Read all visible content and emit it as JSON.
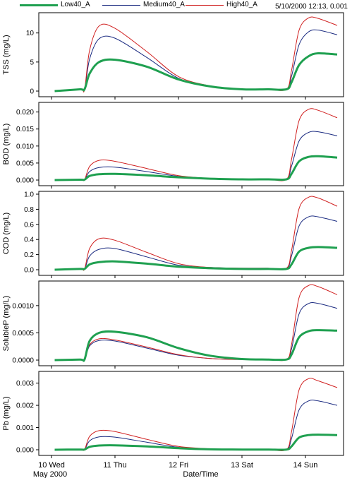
{
  "legend": {
    "items": [
      {
        "label": "Low40_A",
        "color": "#1fa050",
        "width": 3
      },
      {
        "label": "Medium40_A",
        "color": "#1a2a80",
        "width": 1
      },
      {
        "label": "High40_A",
        "color": "#d02020",
        "width": 1
      }
    ]
  },
  "cursor_readout": "5/10/2000 12:13, 0.001",
  "chart_data": {
    "type": "line",
    "x_axis": {
      "label": "Date/Time",
      "range_days": [
        9.8,
        14.6
      ],
      "ticks": [
        {
          "day": 10,
          "label": "10 Wed",
          "sublabel": "May 2000"
        },
        {
          "day": 11,
          "label": "11 Thu"
        },
        {
          "day": 12,
          "label": "12 Fri"
        },
        {
          "day": 13,
          "label": "13 Sat"
        },
        {
          "day": 14,
          "label": "14 Sun"
        }
      ]
    },
    "panels": [
      {
        "name": "tss",
        "ylabel": "TSS (mg/L)",
        "ylim": [
          0,
          13
        ],
        "yticks": [
          {
            "v": 0,
            "t": "0"
          },
          {
            "v": 5,
            "t": "5"
          },
          {
            "v": 10,
            "t": "10"
          }
        ],
        "series": [
          {
            "name": "Low40_A",
            "x": [
              10.05,
              10.45,
              10.52,
              10.6,
              10.75,
              11.0,
              11.5,
              12.0,
              12.5,
              13.0,
              13.4,
              13.7,
              13.78,
              13.9,
              14.05,
              14.2,
              14.5
            ],
            "y": [
              0,
              0.3,
              0.3,
              3.0,
              5.0,
              5.4,
              4.2,
              2.0,
              0.8,
              0.3,
              0.3,
              0.3,
              1.5,
              4.5,
              6.0,
              6.5,
              6.3
            ]
          },
          {
            "name": "Medium40_A",
            "x": [
              10.05,
              10.45,
              10.52,
              10.6,
              10.75,
              11.0,
              11.5,
              12.0,
              12.5,
              13.0,
              13.4,
              13.7,
              13.78,
              13.9,
              14.05,
              14.2,
              14.5
            ],
            "y": [
              0,
              0.3,
              0.3,
              5.5,
              9.0,
              9.1,
              5.8,
              2.2,
              0.8,
              0.3,
              0.3,
              0.3,
              2.5,
              8.0,
              10.2,
              10.5,
              9.7
            ]
          },
          {
            "name": "High40_A",
            "x": [
              10.05,
              10.45,
              10.52,
              10.6,
              10.75,
              11.0,
              11.5,
              12.0,
              12.5,
              13.0,
              13.4,
              13.7,
              13.78,
              13.9,
              14.05,
              14.2,
              14.5
            ],
            "y": [
              0,
              0.3,
              0.3,
              7.0,
              11.2,
              10.8,
              6.8,
              2.5,
              0.9,
              0.3,
              0.3,
              0.3,
              3.5,
              10.5,
              12.6,
              12.5,
              11.3
            ]
          }
        ]
      },
      {
        "name": "bod",
        "ylabel": "BOD (mg/L)",
        "ylim": [
          0,
          0.022
        ],
        "yticks": [
          {
            "v": 0,
            "t": "0.000"
          },
          {
            "v": 0.005,
            "t": "0.005"
          },
          {
            "v": 0.01,
            "t": "0.010"
          },
          {
            "v": 0.015,
            "t": "0.015"
          },
          {
            "v": 0.02,
            "t": "0.020"
          }
        ],
        "series": [
          {
            "name": "Low40_A",
            "x": [
              10.05,
              10.45,
              10.52,
              10.6,
              10.75,
              11.0,
              11.5,
              12.0,
              12.5,
              13.0,
              13.4,
              13.7,
              13.78,
              13.9,
              14.05,
              14.2,
              14.5
            ],
            "y": [
              0,
              0.0001,
              0.0001,
              0.0012,
              0.0017,
              0.0018,
              0.0014,
              0.0008,
              0.0004,
              0.0002,
              0.0002,
              0.0002,
              0.0018,
              0.0055,
              0.0068,
              0.007,
              0.0066
            ]
          },
          {
            "name": "Medium40_A",
            "x": [
              10.05,
              10.45,
              10.52,
              10.6,
              10.75,
              11.0,
              11.5,
              12.0,
              12.5,
              13.0,
              13.4,
              13.7,
              13.78,
              13.9,
              14.05,
              14.2,
              14.5
            ],
            "y": [
              0,
              0.0001,
              0.0001,
              0.0025,
              0.0037,
              0.0038,
              0.0025,
              0.0011,
              0.0005,
              0.0002,
              0.0002,
              0.0002,
              0.004,
              0.0115,
              0.014,
              0.0142,
              0.013
            ]
          },
          {
            "name": "High40_A",
            "x": [
              10.05,
              10.45,
              10.52,
              10.6,
              10.75,
              11.0,
              11.5,
              12.0,
              12.5,
              13.0,
              13.4,
              13.7,
              13.78,
              13.9,
              14.05,
              14.2,
              14.5
            ],
            "y": [
              0,
              0.0001,
              0.0001,
              0.004,
              0.0058,
              0.0055,
              0.0034,
              0.0013,
              0.0005,
              0.0002,
              0.0002,
              0.0002,
              0.006,
              0.0175,
              0.0208,
              0.0205,
              0.0183
            ]
          }
        ]
      },
      {
        "name": "cod",
        "ylabel": "COD (mg/L)",
        "ylim": [
          0,
          1.0
        ],
        "yticks": [
          {
            "v": 0,
            "t": "0.0"
          },
          {
            "v": 0.2,
            "t": "0.2"
          },
          {
            "v": 0.4,
            "t": "0.4"
          },
          {
            "v": 0.6,
            "t": "0.6"
          },
          {
            "v": 0.8,
            "t": "0.8"
          },
          {
            "v": 1.0,
            "t": "1.0"
          }
        ],
        "series": [
          {
            "name": "Low40_A",
            "x": [
              10.05,
              10.45,
              10.52,
              10.6,
              10.75,
              11.0,
              11.5,
              12.0,
              12.5,
              13.0,
              13.4,
              13.7,
              13.78,
              13.9,
              14.05,
              14.2,
              14.5
            ],
            "y": [
              0,
              0.01,
              0.01,
              0.07,
              0.1,
              0.11,
              0.08,
              0.04,
              0.02,
              0.01,
              0.01,
              0.01,
              0.07,
              0.24,
              0.29,
              0.3,
              0.29
            ]
          },
          {
            "name": "Medium40_A",
            "x": [
              10.05,
              10.45,
              10.52,
              10.6,
              10.75,
              11.0,
              11.5,
              12.0,
              12.5,
              13.0,
              13.4,
              13.7,
              13.78,
              13.9,
              14.05,
              14.2,
              14.5
            ],
            "y": [
              0,
              0.01,
              0.01,
              0.18,
              0.27,
              0.28,
              0.17,
              0.06,
              0.03,
              0.02,
              0.02,
              0.02,
              0.18,
              0.58,
              0.7,
              0.7,
              0.64
            ]
          },
          {
            "name": "High40_A",
            "x": [
              10.05,
              10.45,
              10.52,
              10.6,
              10.75,
              11.0,
              11.5,
              12.0,
              12.5,
              13.0,
              13.4,
              13.7,
              13.78,
              13.9,
              14.05,
              14.2,
              14.5
            ],
            "y": [
              0,
              0.01,
              0.01,
              0.28,
              0.41,
              0.39,
              0.23,
              0.08,
              0.03,
              0.02,
              0.02,
              0.02,
              0.25,
              0.81,
              0.96,
              0.95,
              0.84
            ]
          }
        ]
      },
      {
        "name": "solublep",
        "ylabel": "SolubleP (mg/L)",
        "ylim": [
          0,
          0.0014
        ],
        "yticks": [
          {
            "v": 0,
            "t": "0.0000"
          },
          {
            "v": 0.0005,
            "t": "0.0005"
          },
          {
            "v": 0.001,
            "t": "0.0010"
          }
        ],
        "series": [
          {
            "name": "Low40_A",
            "x": [
              10.05,
              10.45,
              10.52,
              10.6,
              10.75,
              11.0,
              11.5,
              12.0,
              12.5,
              13.0,
              13.4,
              13.7,
              13.78,
              13.9,
              14.05,
              14.2,
              14.5
            ],
            "y": [
              0,
              1e-05,
              1e-05,
              0.00035,
              0.0005,
              0.00052,
              0.00042,
              0.00022,
              8e-05,
              2e-05,
              1e-05,
              1e-05,
              0.0001,
              0.00042,
              0.00053,
              0.00055,
              0.00054
            ]
          },
          {
            "name": "Medium40_A",
            "x": [
              10.05,
              10.45,
              10.52,
              10.6,
              10.75,
              11.0,
              11.5,
              12.0,
              12.5,
              13.0,
              13.4,
              13.7,
              13.78,
              13.9,
              14.05,
              14.2,
              14.5
            ],
            "y": [
              0,
              1e-05,
              1e-05,
              0.00026,
              0.00036,
              0.00035,
              0.00022,
              9e-05,
              3e-05,
              1e-05,
              1e-05,
              1e-05,
              0.0002,
              0.00085,
              0.00104,
              0.00104,
              0.00095
            ]
          },
          {
            "name": "High40_A",
            "x": [
              10.05,
              10.45,
              10.52,
              10.6,
              10.75,
              11.0,
              11.5,
              12.0,
              12.5,
              13.0,
              13.4,
              13.7,
              13.78,
              13.9,
              14.05,
              14.2,
              14.5
            ],
            "y": [
              0,
              1e-05,
              1e-05,
              0.00028,
              0.00039,
              0.00037,
              0.00024,
              0.0001,
              3e-05,
              1e-05,
              1e-05,
              1e-05,
              0.00028,
              0.00115,
              0.00137,
              0.00135,
              0.0012
            ]
          }
        ]
      },
      {
        "name": "pb",
        "ylabel": "Pb (mg/L)",
        "ylim": [
          0,
          0.0034
        ],
        "yticks": [
          {
            "v": 0,
            "t": "0.000"
          },
          {
            "v": 0.001,
            "t": "0.001"
          },
          {
            "v": 0.002,
            "t": "0.002"
          },
          {
            "v": 0.003,
            "t": "0.003"
          }
        ],
        "series": [
          {
            "name": "Low40_A",
            "x": [
              10.05,
              10.45,
              10.52,
              10.6,
              10.75,
              11.0,
              11.5,
              12.0,
              12.5,
              13.0,
              13.4,
              13.7,
              13.78,
              13.9,
              14.05,
              14.2,
              14.5
            ],
            "y": [
              0,
              1e-05,
              1e-05,
              0.00013,
              0.00019,
              0.0002,
              0.00015,
              7e-05,
              2e-05,
              1e-05,
              1e-05,
              1e-05,
              0.00015,
              0.00055,
              0.00066,
              0.00068,
              0.00066
            ]
          },
          {
            "name": "Medium40_A",
            "x": [
              10.05,
              10.45,
              10.52,
              10.6,
              10.75,
              11.0,
              11.5,
              12.0,
              12.5,
              13.0,
              13.4,
              13.7,
              13.78,
              13.9,
              14.05,
              14.2,
              14.5
            ],
            "y": [
              0,
              1e-05,
              1e-05,
              0.0004,
              0.00058,
              0.00057,
              0.00034,
              0.00011,
              3e-05,
              1e-05,
              1e-05,
              1e-05,
              0.0005,
              0.0018,
              0.0022,
              0.0022,
              0.002
            ]
          },
          {
            "name": "High40_A",
            "x": [
              10.05,
              10.45,
              10.52,
              10.6,
              10.75,
              11.0,
              11.5,
              12.0,
              12.5,
              13.0,
              13.4,
              13.7,
              13.78,
              13.9,
              14.05,
              14.2,
              14.5
            ],
            "y": [
              0,
              1e-05,
              1e-05,
              0.0006,
              0.00086,
              0.00082,
              0.00047,
              0.00015,
              4e-05,
              1e-05,
              1e-05,
              1e-05,
              0.0008,
              0.0027,
              0.0032,
              0.0031,
              0.0028
            ]
          }
        ]
      }
    ]
  }
}
